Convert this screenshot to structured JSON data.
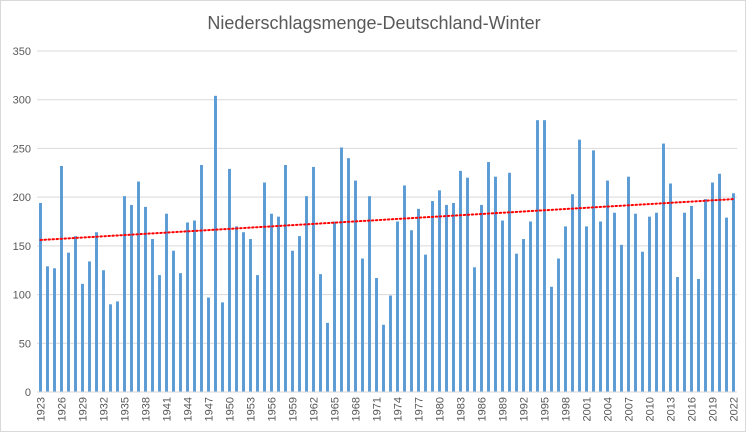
{
  "chart_data": {
    "type": "bar",
    "title": "Niederschlagsmenge-Deutschland-Winter",
    "xlabel": "",
    "ylabel": "",
    "ylim": [
      0,
      350
    ],
    "yticks": [
      0,
      50,
      100,
      150,
      200,
      250,
      300,
      350
    ],
    "grid": true,
    "legend": "none",
    "colors": {
      "bar": "#5b9bd5",
      "trend": "#ff0000",
      "grid": "#d9d9d9",
      "text": "#595959"
    },
    "x_tick_labels": [
      "1923",
      "1926",
      "1929",
      "1932",
      "1935",
      "1938",
      "1941",
      "1944",
      "1947",
      "1950",
      "1953",
      "1956",
      "1959",
      "1962",
      "1965",
      "1968",
      "1971",
      "1974",
      "1977",
      "1980",
      "1983",
      "1986",
      "1989",
      "1992",
      "1995",
      "1998",
      "2001",
      "2004",
      "2007",
      "2010",
      "2013",
      "2016",
      "2019",
      "2022"
    ],
    "categories": [
      1923,
      1924,
      1925,
      1926,
      1927,
      1928,
      1929,
      1930,
      1931,
      1932,
      1933,
      1934,
      1935,
      1936,
      1937,
      1938,
      1939,
      1940,
      1941,
      1942,
      1943,
      1944,
      1945,
      1946,
      1947,
      1948,
      1949,
      1950,
      1951,
      1952,
      1953,
      1954,
      1955,
      1956,
      1957,
      1958,
      1959,
      1960,
      1961,
      1962,
      1963,
      1964,
      1965,
      1966,
      1967,
      1968,
      1969,
      1970,
      1971,
      1972,
      1973,
      1974,
      1975,
      1976,
      1977,
      1978,
      1979,
      1980,
      1981,
      1982,
      1983,
      1984,
      1985,
      1986,
      1987,
      1988,
      1989,
      1990,
      1991,
      1992,
      1993,
      1994,
      1995,
      1996,
      1997,
      1998,
      1999,
      2000,
      2001,
      2002,
      2003,
      2004,
      2005,
      2006,
      2007,
      2008,
      2009,
      2010,
      2011,
      2012,
      2013,
      2014,
      2015,
      2016,
      2017,
      2018,
      2019,
      2020,
      2021,
      2022
    ],
    "values": [
      194,
      129,
      127,
      232,
      143,
      160,
      111,
      134,
      164,
      125,
      90,
      93,
      201,
      192,
      216,
      190,
      157,
      120,
      183,
      145,
      122,
      174,
      176,
      233,
      97,
      304,
      92,
      229,
      170,
      164,
      157,
      120,
      215,
      183,
      180,
      233,
      145,
      160,
      201,
      231,
      121,
      71,
      175,
      251,
      240,
      217,
      137,
      201,
      117,
      69,
      99,
      175,
      212,
      166,
      188,
      141,
      196,
      207,
      192,
      194,
      227,
      220,
      128,
      192,
      236,
      221,
      176,
      225,
      142,
      157,
      175,
      279,
      279,
      108,
      137,
      170,
      203,
      259,
      170,
      248,
      175,
      217,
      184,
      151,
      221,
      183,
      144,
      180,
      184,
      255,
      214,
      118,
      184,
      191,
      116,
      198,
      215,
      224,
      179,
      204
    ],
    "trendline": {
      "type": "linear",
      "style": "dotted",
      "start": [
        1923,
        156
      ],
      "end": [
        2022,
        198
      ]
    }
  }
}
